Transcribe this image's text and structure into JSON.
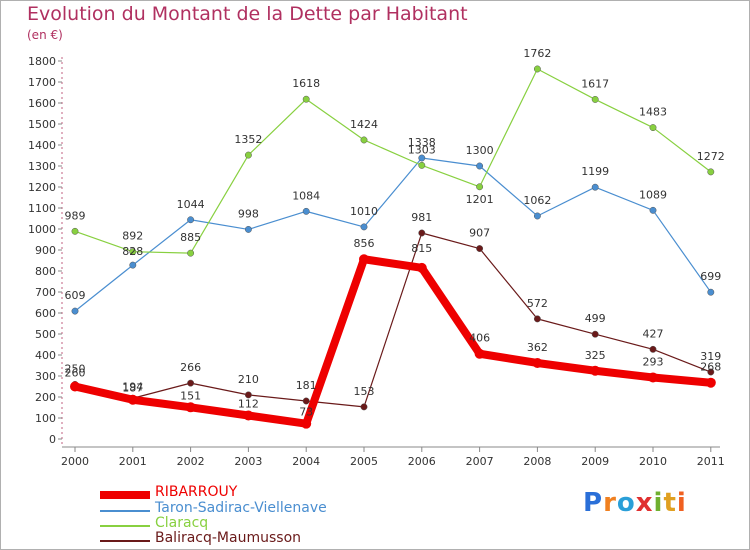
{
  "title": "Evolution du Montant de la Dette par Habitant",
  "subtitle": "(en €)",
  "logo": {
    "text": "Proxiti",
    "letter_colors": [
      "#2a6fd8",
      "#f08020",
      "#2a9fd8",
      "#e03030",
      "#70b030",
      "#e0a020",
      "#f06020"
    ]
  },
  "chart_data": {
    "type": "line",
    "title": "Evolution du Montant de la Dette par Habitant",
    "ylabel": "(en €)",
    "xlabel": "",
    "categories": [
      "2000",
      "2001",
      "2002",
      "2003",
      "2004",
      "2005",
      "2006",
      "2007",
      "2008",
      "2009",
      "2010",
      "2011"
    ],
    "ylim": [
      0,
      1800
    ],
    "yticks": [
      0,
      100,
      200,
      300,
      400,
      500,
      600,
      700,
      800,
      900,
      1000,
      1100,
      1200,
      1300,
      1400,
      1500,
      1600,
      1700,
      1800
    ],
    "grid": false,
    "legend_position": "bottom-left",
    "series": [
      {
        "name": "Taron-Sadirac-Viellenave",
        "color": "#4a8ed0",
        "values": [
          609,
          828,
          1044,
          998,
          1084,
          1010,
          1338,
          1300,
          1062,
          1199,
          1089,
          699
        ]
      },
      {
        "name": "Claracq",
        "color": "#88d040",
        "values": [
          989,
          892,
          885,
          1352,
          1618,
          1424,
          1303,
          1201,
          1762,
          1617,
          1483,
          1272
        ]
      },
      {
        "name": "Baliracq-Maumusson",
        "color": "#6a1a1a",
        "values": [
          260,
          194,
          266,
          210,
          181,
          153,
          981,
          907,
          572,
          499,
          427,
          319
        ]
      },
      {
        "name": "RIBARROUY",
        "color": "#ee0000",
        "values": [
          250,
          187,
          151,
          112,
          73,
          856,
          815,
          406,
          362,
          325,
          293,
          268
        ]
      }
    ]
  }
}
